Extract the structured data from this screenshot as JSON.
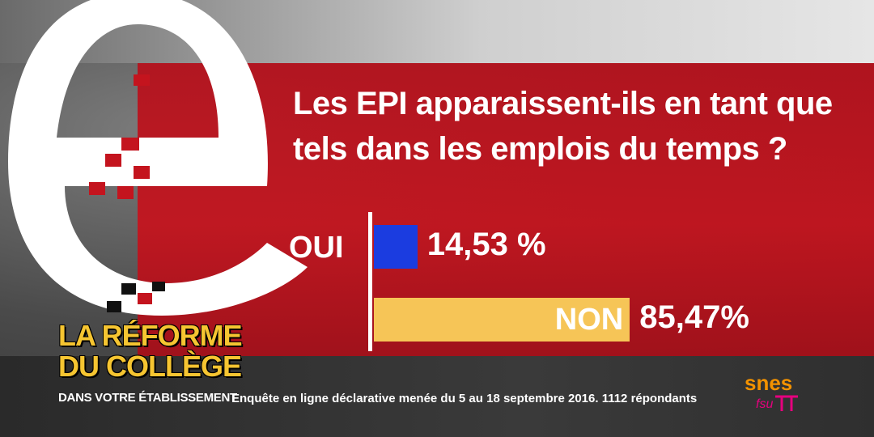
{
  "question": "Les EPI apparaissent-ils en tant que tels dans les emplois du temps ?",
  "chart_data": {
    "type": "bar",
    "orientation": "horizontal",
    "categories": [
      "OUI",
      "NON"
    ],
    "values": [
      14.53,
      85.47
    ],
    "value_labels": [
      "14,53 %",
      "85,47%"
    ],
    "colors": [
      "#1b3ce0",
      "#f6c557"
    ],
    "xlim": [
      0,
      100
    ]
  },
  "branding": {
    "title_line1": "LA RÉFORME",
    "title_line2": "DU COLLÈGE",
    "subtitle": "DANS VOTRE ÉTABLISSEMENT",
    "logo_text_top": "snes",
    "logo_text_bottom": "fsu"
  },
  "footnote": "Enquête en ligne déclarative menée du 5 au 18 septembre 2016. 1112 répondants",
  "colors": {
    "band": "#c4141e",
    "accent_yellow": "#f6c531",
    "snes_orange": "#f39200",
    "snes_pink": "#e6007e"
  }
}
